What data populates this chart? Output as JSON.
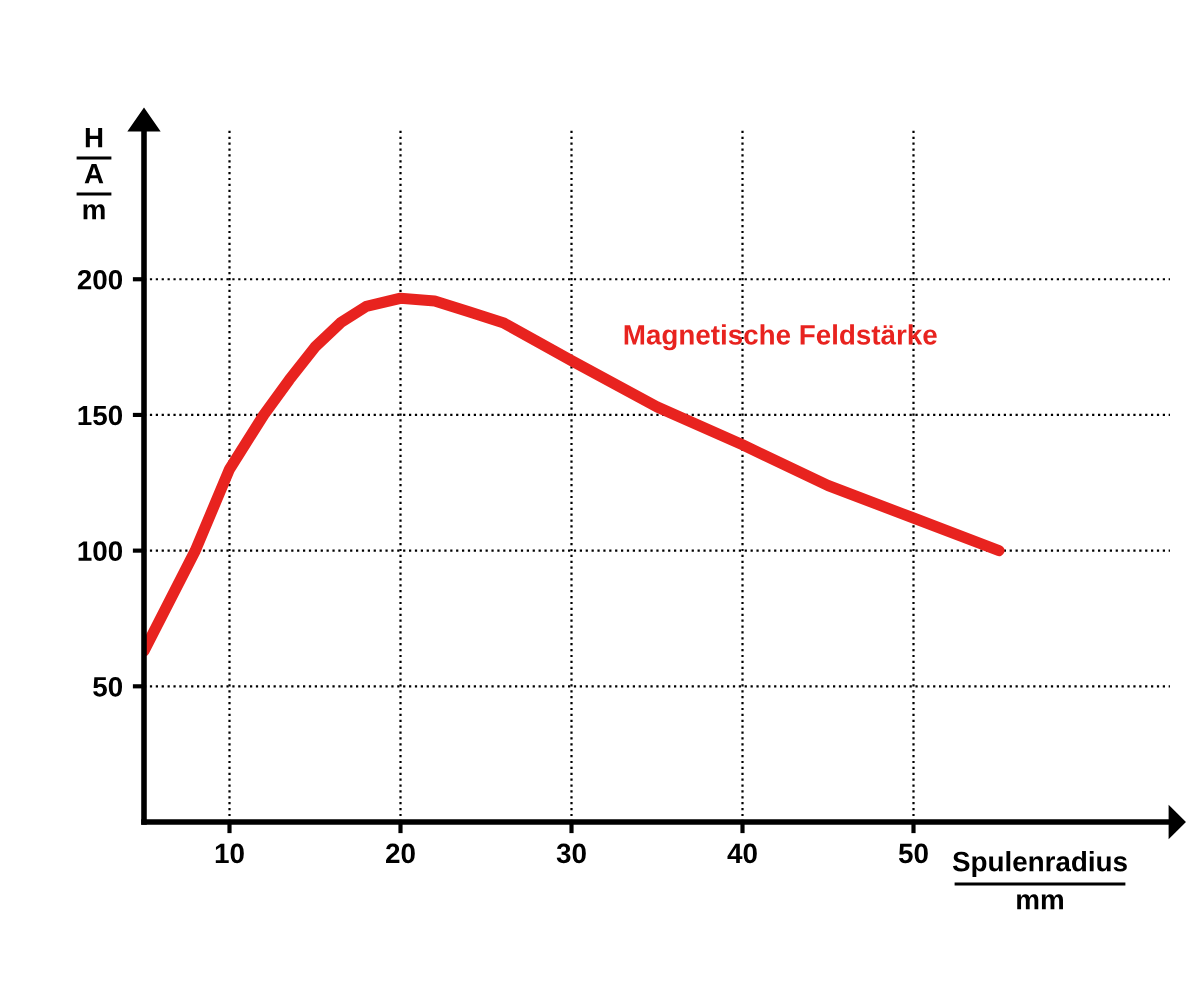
{
  "chart_data": {
    "type": "line",
    "xlabel": "Spulenradius\nmm",
    "ylabel": "H\nA\nm",
    "x": [
      5,
      8,
      10,
      12,
      13.5,
      15,
      16.5,
      18,
      20,
      22,
      24,
      26,
      28,
      30,
      35,
      40,
      45,
      50,
      55
    ],
    "series": [
      {
        "name": "Magnetische Feldstärke",
        "color": "#e8231f",
        "values": [
          63,
          100,
          130,
          150,
          163,
          175,
          184,
          190,
          193,
          192,
          188,
          184,
          177,
          170,
          153,
          139,
          124,
          112,
          100
        ]
      }
    ],
    "xlim": [
      5,
      65
    ],
    "ylim": [
      0,
      255
    ],
    "xticks": [
      10,
      20,
      30,
      40,
      50
    ],
    "yticks": [
      50,
      100,
      150,
      200
    ],
    "grid": true,
    "line_style": "solid",
    "marker": "none"
  }
}
